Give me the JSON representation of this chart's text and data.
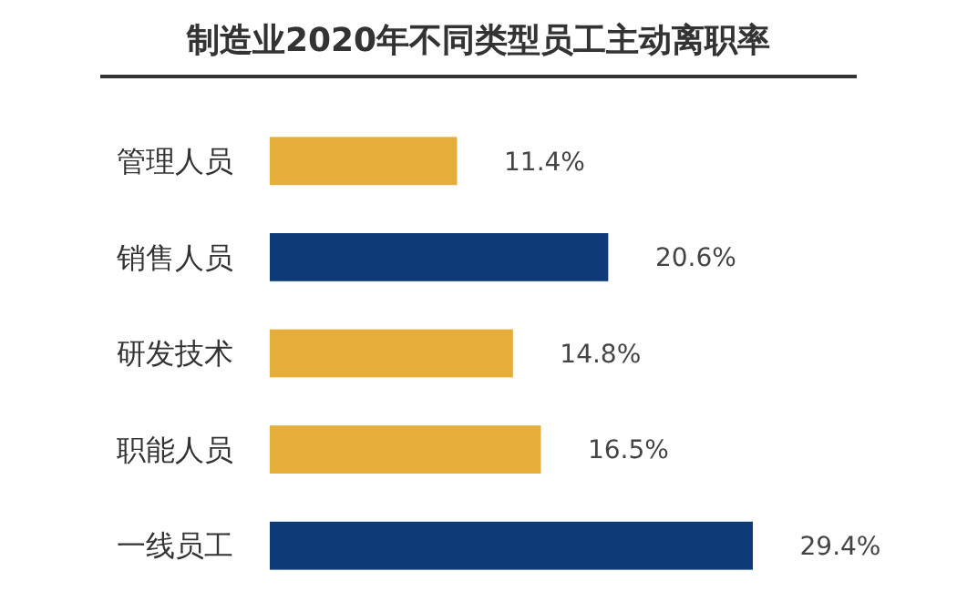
{
  "chart_data": {
    "type": "bar",
    "orientation": "horizontal",
    "title": "制造业2020年不同类型员工主动离职率",
    "categories": [
      "管理人员",
      "销售人员",
      "研发技术",
      "职能人员",
      "一线员工"
    ],
    "values": [
      11.4,
      20.6,
      14.8,
      16.5,
      29.4
    ],
    "colors": [
      "#e5ae3b",
      "#0e3a78",
      "#e5ae3b",
      "#e5ae3b",
      "#0e3a78"
    ],
    "value_labels": [
      "11.4%",
      "20.6%",
      "14.8%",
      "16.5%",
      "29.4%"
    ]
  }
}
